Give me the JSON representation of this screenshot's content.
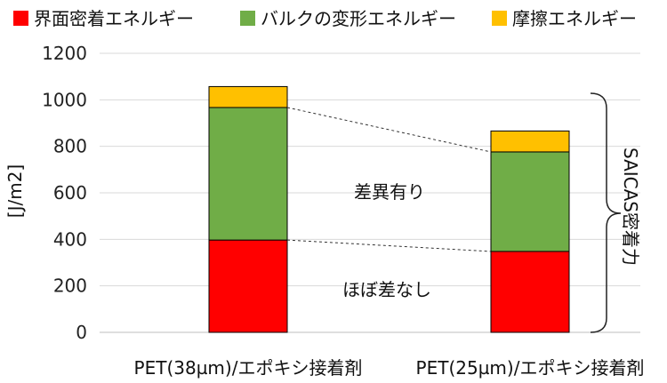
{
  "chart_data": {
    "type": "bar",
    "stacked": true,
    "categories": [
      "PET(38µm)/エポキシ接着剤",
      "PET(25µm)/エポキシ接着剤"
    ],
    "series": [
      {
        "name": "界面密着エネルギー",
        "values": [
          397,
          348
        ],
        "color": "#ff0000"
      },
      {
        "name": "バルクの変形エネルギー",
        "values": [
          570,
          428
        ],
        "color": "#70ad47"
      },
      {
        "name": "摩擦エネルギー",
        "values": [
          90,
          90
        ],
        "color": "#ffc000"
      }
    ],
    "ylabel": "[J/m2]",
    "ylim": [
      0,
      1200
    ],
    "yticks": [
      0,
      200,
      400,
      600,
      800,
      1000,
      1200
    ],
    "grid": true,
    "legend_position": "top",
    "annotations": {
      "upper": "差異有り",
      "lower": "ほぼ差なし",
      "bracket_label": "SAICAS密着力"
    }
  }
}
